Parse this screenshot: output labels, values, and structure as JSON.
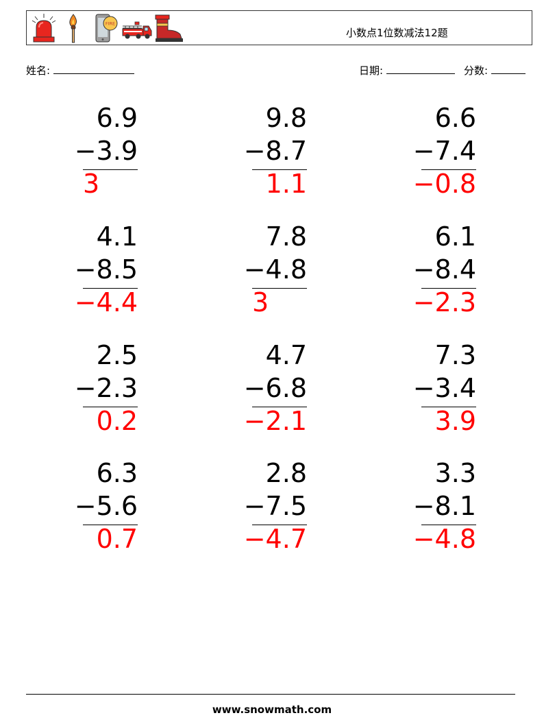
{
  "header": {
    "title": "小数点1位数减法12题",
    "icons": [
      "siren-icon",
      "matchstick-icon",
      "phone-icon",
      "fire-truck-icon",
      "boot-icon"
    ],
    "phone_badge": "FIRE"
  },
  "meta": {
    "name_label": "姓名:",
    "date_label": "日期:",
    "score_label": "分数:"
  },
  "problems": [
    {
      "a": "6.9",
      "b": "−3.9",
      "answer": "3"
    },
    {
      "a": "9.8",
      "b": "−8.7",
      "answer": "1.1"
    },
    {
      "a": "6.6",
      "b": "−7.4",
      "answer": "−0.8"
    },
    {
      "a": "4.1",
      "b": "−8.5",
      "answer": "−4.4"
    },
    {
      "a": "7.8",
      "b": "−4.8",
      "answer": "3"
    },
    {
      "a": "6.1",
      "b": "−8.4",
      "answer": "−2.3"
    },
    {
      "a": "2.5",
      "b": "−2.3",
      "answer": "0.2"
    },
    {
      "a": "4.7",
      "b": "−6.8",
      "answer": "−2.1"
    },
    {
      "a": "7.3",
      "b": "−3.4",
      "answer": "3.9"
    },
    {
      "a": "6.3",
      "b": "−5.6",
      "answer": "0.7"
    },
    {
      "a": "2.8",
      "b": "−7.5",
      "answer": "−4.7"
    },
    {
      "a": "3.3",
      "b": "−8.1",
      "answer": "−4.8"
    }
  ],
  "colors": {
    "answer": "#ff0000",
    "siren": "#e8261f",
    "flame": "#f08a24"
  },
  "footer": {
    "site": "www.snowmath.com"
  }
}
